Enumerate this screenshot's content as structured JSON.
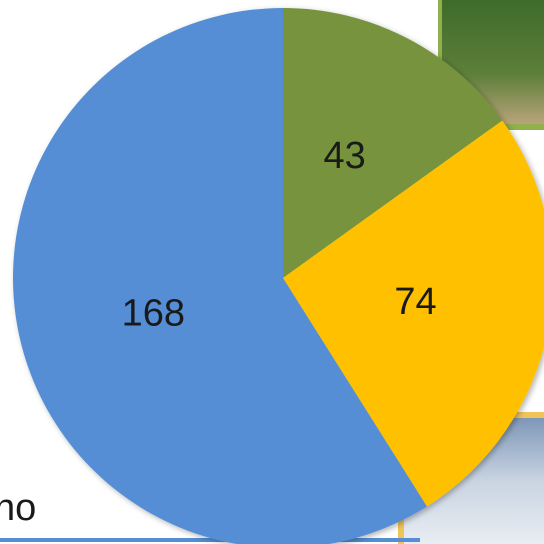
{
  "chart_data": {
    "type": "pie",
    "categories": [
      null,
      null,
      null
    ],
    "values": [
      43,
      74,
      168
    ],
    "colors": [
      "#77933c",
      "#ffc000",
      "#558ed5"
    ],
    "annotations": [
      "no"
    ]
  }
}
